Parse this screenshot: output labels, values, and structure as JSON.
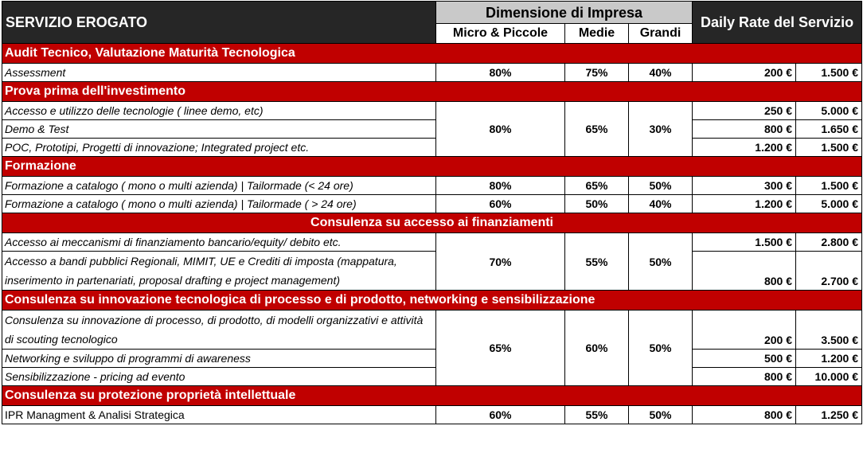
{
  "header": {
    "service_label": "SERVIZIO EROGATO",
    "size_label": "Dimensione di Impresa",
    "rate_label": "Daily Rate del Servizio",
    "micro_label": "Micro & Piccole",
    "medie_label": "Medie",
    "grandi_label": "Grandi"
  },
  "sections": [
    {
      "title": "Audit Tecnico, Valutazione Maturità Tecnologica",
      "micro": "80%",
      "medie": "75%",
      "grandi": "40%",
      "rows": [
        {
          "service": "Assessment",
          "rate_low": "200 €",
          "rate_high": "1.500 €"
        }
      ]
    },
    {
      "title": "Prova prima dell'investimento",
      "micro": "80%",
      "medie": "65%",
      "grandi": "30%",
      "rows": [
        {
          "service": "Accesso e utilizzo delle tecnologie ( linee demo, etc)",
          "rate_low": "250 €",
          "rate_high": "5.000 €"
        },
        {
          "service": "Demo & Test",
          "rate_low": "800 €",
          "rate_high": "1.650 €"
        },
        {
          "service": "POC, Prototipi, Progetti di innovazione; Integrated project etc.",
          "rate_low": "1.200 €",
          "rate_high": "1.500 €"
        }
      ]
    },
    {
      "title": "Formazione",
      "rows": [
        {
          "service": "Formazione a catalogo ( mono o multi azienda) | Tailormade (<  24 ore)",
          "micro": "80%",
          "medie": "65%",
          "grandi": "50%",
          "rate_low": "300 €",
          "rate_high": "1.500 €"
        },
        {
          "service": "Formazione a catalogo ( mono o multi azienda) | Tailormade ( > 24 ore)",
          "micro": "60%",
          "medie": "50%",
          "grandi": "40%",
          "rate_low": "1.200 €",
          "rate_high": "5.000 €"
        }
      ]
    },
    {
      "title": "Consulenza su accesso ai finanziamenti",
      "micro": "70%",
      "medie": "55%",
      "grandi": "50%",
      "rows": [
        {
          "service": "Accesso ai meccanismi di finanziamento bancario/equity/ debito etc.",
          "rate_low": "1.500 €",
          "rate_high": "2.800 €"
        },
        {
          "service": "Accesso a bandi pubblici Regionali, MIMIT, UE e Crediti di imposta (mappatura, inserimento in partenariati, proposal drafting e project management)",
          "rate_low": "800 €",
          "rate_high": "2.700 €"
        }
      ]
    },
    {
      "title": "Consulenza su innovazione tecnologica di processo e di prodotto, networking e sensibilizzazione",
      "micro": "65%",
      "medie": "60%",
      "grandi": "50%",
      "rows": [
        {
          "service": "Consulenza su innovazione di processo, di prodotto, di modelli organizzativi e attività di scouting tecnologico",
          "rate_low": "200 €",
          "rate_high": "3.500 €"
        },
        {
          "service": "Networking e sviluppo di programmi di awareness",
          "rate_low": "500 €",
          "rate_high": "1.200 €"
        },
        {
          "service": "Sensibilizzazione - pricing ad evento",
          "rate_low": "800 €",
          "rate_high": "10.000 €"
        }
      ]
    },
    {
      "title": "Consulenza su protezione proprietà intellettuale",
      "rows": [
        {
          "service": "IPR Managment & Analisi Strategica",
          "micro": "60%",
          "medie": "55%",
          "grandi": "50%",
          "rate_low": "800 €",
          "rate_high": "1.250 €"
        }
      ]
    }
  ]
}
